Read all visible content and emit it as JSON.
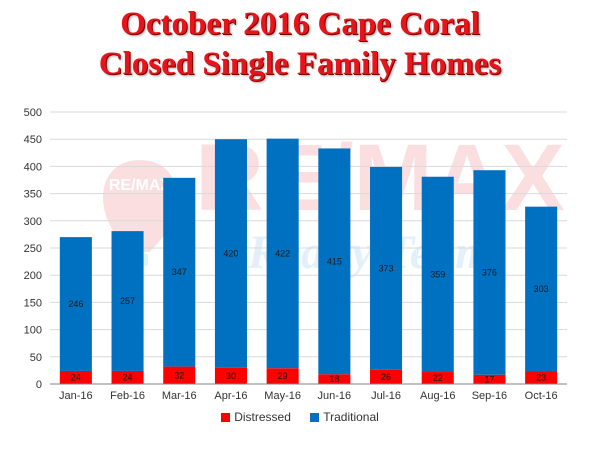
{
  "title": {
    "line1": "October 2016 Cape Coral",
    "line2": "Closed Single Family Homes"
  },
  "watermark": {
    "logo_text": "RE/MAX",
    "tagline": "Realty Team",
    "brand_color": "#e8141b",
    "accent_color": "#2d8fd6"
  },
  "colors": {
    "distressed": "#ff0000",
    "traditional": "#0070c0",
    "gridline": "#d9d9d9",
    "axis": "#808080"
  },
  "chart_data": {
    "type": "bar",
    "stacked": true,
    "categories": [
      "Jan-16",
      "Feb-16",
      "Mar-16",
      "Apr-16",
      "May-16",
      "Jun-16",
      "Jul-16",
      "Aug-16",
      "Sep-16",
      "Oct-16"
    ],
    "series": [
      {
        "name": "Distressed",
        "values": [
          24,
          24,
          32,
          30,
          29,
          18,
          26,
          22,
          17,
          23
        ]
      },
      {
        "name": "Traditional",
        "values": [
          246,
          257,
          347,
          420,
          422,
          415,
          373,
          359,
          376,
          303
        ]
      }
    ],
    "series_labels": [
      [
        "24",
        "24",
        "32",
        "30",
        "29",
        "18",
        "26",
        "22",
        "17",
        "23"
      ],
      [
        "246",
        "257",
        "347",
        "420",
        "422",
        "415",
        "373",
        "359",
        "376",
        "303"
      ]
    ],
    "yticks": [
      "0",
      "50",
      "100",
      "150",
      "200",
      "250",
      "300",
      "350",
      "400",
      "450",
      "500"
    ],
    "ylim": [
      0,
      500
    ],
    "grid": true,
    "legend_position": "bottom"
  }
}
